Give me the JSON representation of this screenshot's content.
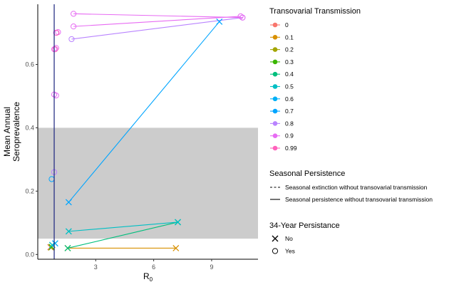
{
  "chart_data": {
    "type": "scatter",
    "xlabel": "R",
    "xlabel_subscript": "0",
    "ylabel_lines": [
      "Mean Annual",
      "Seroprevalence"
    ],
    "xlim": [
      0.0,
      11.4
    ],
    "ylim": [
      -0.015,
      0.79
    ],
    "x_ticks": [
      3,
      6,
      9
    ],
    "y_ticks": [
      0.0,
      0.2,
      0.4,
      0.6
    ],
    "y_tick_labels": [
      "0.0",
      "0.2",
      "0.4",
      "0.6"
    ],
    "shaded_band": {
      "y_from": 0.05,
      "y_to": 0.4,
      "color": "#cccccc"
    },
    "reference_line": {
      "x": 0.85,
      "color": "#1a237e"
    },
    "series": [
      {
        "tt": "0",
        "color": "#F8766D",
        "points": [
          [
            0.65,
            0.023,
            "x"
          ]
        ],
        "lines": []
      },
      {
        "tt": "0.1",
        "color": "#D89000",
        "points": [
          [
            1.55,
            0.02,
            "x"
          ],
          [
            7.15,
            0.02,
            "x"
          ]
        ],
        "lines": [
          [
            [
              1.55,
              0.02
            ],
            [
              7.15,
              0.02
            ],
            "solid"
          ]
        ]
      },
      {
        "tt": "0.2",
        "color": "#A3A500",
        "points": [
          [
            0.7,
            0.022,
            "x"
          ]
        ],
        "lines": []
      },
      {
        "tt": "0.3",
        "color": "#39B600",
        "points": [
          [
            0.72,
            0.024,
            "x"
          ]
        ],
        "lines": []
      },
      {
        "tt": "0.4",
        "color": "#00BF7D",
        "points": [
          [
            1.55,
            0.02,
            "x"
          ],
          [
            7.25,
            0.102,
            "x"
          ]
        ],
        "lines": [
          [
            [
              1.55,
              0.02
            ],
            [
              7.25,
              0.102
            ],
            "solid"
          ]
        ]
      },
      {
        "tt": "0.5",
        "color": "#00BFC4",
        "points": [
          [
            1.6,
            0.073,
            "x"
          ],
          [
            7.25,
            0.102,
            "x"
          ],
          [
            0.75,
            0.03,
            "x"
          ]
        ],
        "lines": [
          [
            [
              1.6,
              0.073
            ],
            [
              7.25,
              0.102
            ],
            "solid"
          ]
        ]
      },
      {
        "tt": "0.6",
        "color": "#00B0F6",
        "points": [
          [
            0.9,
            0.035,
            "x"
          ]
        ],
        "lines": []
      },
      {
        "tt": "0.7",
        "color": "#00A5FF",
        "points": [
          [
            1.6,
            0.165,
            "x"
          ],
          [
            9.4,
            0.735,
            "x"
          ],
          [
            0.72,
            0.238,
            "o"
          ]
        ],
        "lines": [
          [
            [
              1.6,
              0.165
            ],
            [
              9.4,
              0.735
            ],
            "solid"
          ]
        ]
      },
      {
        "tt": "0.8",
        "color": "#B983FF",
        "points": [
          [
            1.75,
            0.68,
            "o"
          ],
          [
            10.6,
            0.748,
            "o"
          ],
          [
            0.85,
            0.26,
            "o"
          ]
        ],
        "lines": [
          [
            [
              1.75,
              0.68
            ],
            [
              10.6,
              0.748
            ],
            "solid"
          ]
        ]
      },
      {
        "tt": "0.9",
        "color": "#E76BF3",
        "points": [
          [
            1.85,
            0.72,
            "o"
          ],
          [
            10.5,
            0.752,
            "o"
          ],
          [
            1.85,
            0.76,
            "o"
          ],
          [
            10.6,
            0.748,
            "o"
          ],
          [
            0.85,
            0.505,
            "o"
          ],
          [
            0.95,
            0.502,
            "o"
          ],
          [
            0.85,
            0.648,
            "o"
          ],
          [
            0.95,
            0.652,
            "o"
          ],
          [
            0.95,
            0.7,
            "o"
          ],
          [
            1.05,
            0.702,
            "o"
          ]
        ],
        "lines": [
          [
            [
              1.85,
              0.72
            ],
            [
              10.5,
              0.752
            ],
            "solid"
          ],
          [
            [
              1.85,
              0.76
            ],
            [
              10.6,
              0.748
            ],
            "solid"
          ]
        ]
      },
      {
        "tt": "0.99",
        "color": "#FF62BC",
        "points": [
          [
            0.9,
            0.648,
            "o"
          ],
          [
            0.97,
            0.7,
            "o"
          ]
        ],
        "lines": []
      }
    ],
    "legend": {
      "placement": "right",
      "tt_title": "Transovarial Transmission",
      "tt_items": [
        {
          "label": "0",
          "color": "#F8766D"
        },
        {
          "label": "0.1",
          "color": "#D89000"
        },
        {
          "label": "0.2",
          "color": "#A3A500"
        },
        {
          "label": "0.3",
          "color": "#39B600"
        },
        {
          "label": "0.4",
          "color": "#00BF7D"
        },
        {
          "label": "0.5",
          "color": "#00BFC4"
        },
        {
          "label": "0.6",
          "color": "#00B0F6"
        },
        {
          "label": "0.7",
          "color": "#00A5FF"
        },
        {
          "label": "0.8",
          "color": "#B983FF"
        },
        {
          "label": "0.9",
          "color": "#E76BF3"
        },
        {
          "label": "0.99",
          "color": "#FF62BC"
        }
      ],
      "sp_title": "Seasonal Persistence",
      "sp_items": [
        {
          "label": "Seasonal extinction without transovarial transmission",
          "linetype": "dashed"
        },
        {
          "label": "Seasonal persistence without transovarial transmission",
          "linetype": "solid"
        }
      ],
      "yp_title": "34-Year Persistance",
      "yp_items": [
        {
          "label": "No",
          "shape": "x"
        },
        {
          "label": "Yes",
          "shape": "o"
        }
      ]
    }
  }
}
